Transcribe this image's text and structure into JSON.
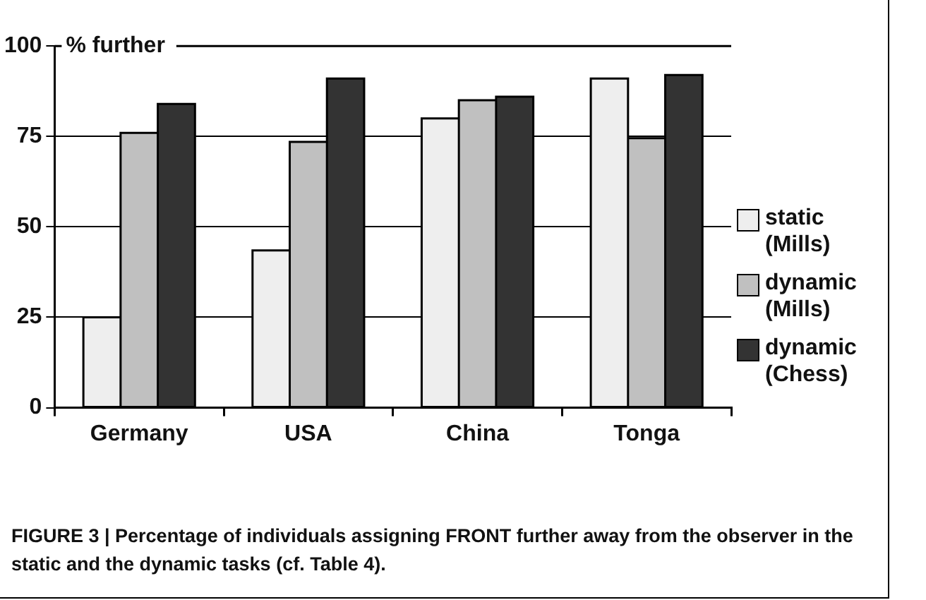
{
  "chart_data": {
    "type": "bar",
    "ylabel": "% further",
    "categories": [
      "Germany",
      "USA",
      "China",
      "Tonga"
    ],
    "series": [
      {
        "name": "static (Mills)",
        "color": "#eeeeee",
        "values": [
          25,
          43.5,
          80,
          91
        ]
      },
      {
        "name": "dynamic (Mills)",
        "color": "#c0c0c0",
        "values": [
          76,
          73.5,
          85,
          74.5
        ]
      },
      {
        "name": "dynamic (Chess)",
        "color": "#333333",
        "values": [
          84,
          91,
          86,
          92
        ]
      }
    ],
    "ylim": [
      0,
      100
    ],
    "yticks": [
      0,
      25,
      50,
      75,
      100
    ],
    "grid": "y",
    "legend": "right",
    "annotations": [
      "FIGURE 3 | Percentage of individuals assigning FRONT further away from the observer in the static and the dynamic tasks (cf. Table 4)."
    ]
  }
}
